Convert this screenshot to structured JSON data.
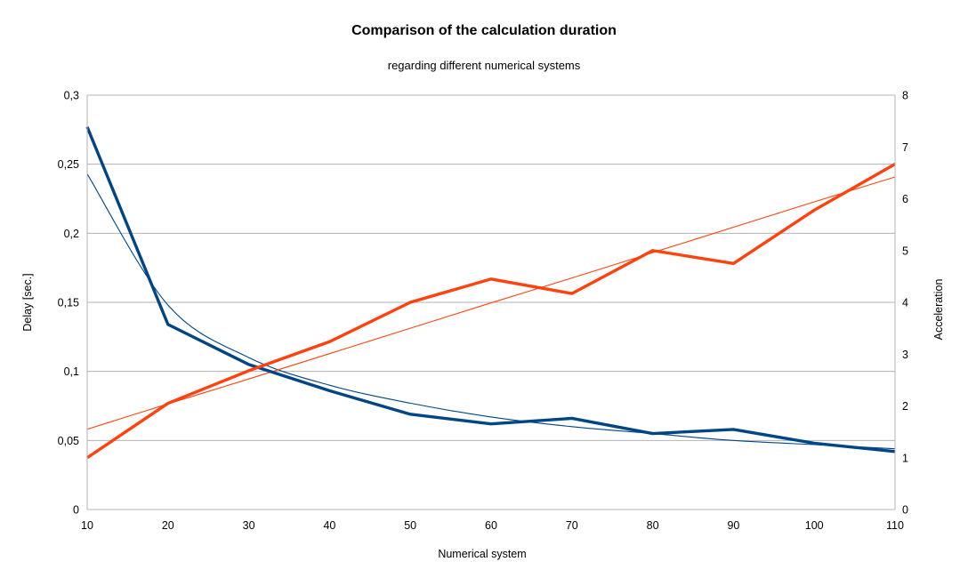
{
  "chart_data": {
    "type": "line",
    "title": "Comparison of the calculation duration",
    "subtitle": "regarding different numerical systems",
    "xlabel": "Numerical system",
    "ylabel": "Delay [sec.]",
    "y2label": "Acceleration",
    "x": [
      10,
      20,
      30,
      40,
      50,
      60,
      70,
      80,
      90,
      100,
      110
    ],
    "xlim": [
      10,
      110
    ],
    "x_ticks": [
      "10",
      "20",
      "30",
      "40",
      "50",
      "60",
      "70",
      "80",
      "90",
      "100",
      "110"
    ],
    "ylim": [
      0,
      0.3
    ],
    "y_ticks": [
      "0",
      "0,05",
      "0,1",
      "0,15",
      "0,2",
      "0,25",
      "0,3"
    ],
    "y2lim": [
      0,
      8
    ],
    "y2_ticks": [
      "0",
      "1",
      "2",
      "3",
      "4",
      "5",
      "6",
      "7",
      "8"
    ],
    "grid": true,
    "legend": "none",
    "series": [
      {
        "axis": "left",
        "color": "#004586",
        "values": [
          0.277,
          0.134,
          0.105,
          0.086,
          0.069,
          0.062,
          0.066,
          0.055,
          0.058,
          0.048,
          0.042
        ]
      },
      {
        "axis": "right",
        "color": "#ff420e",
        "values": [
          1.0,
          2.05,
          2.68,
          3.24,
          4.0,
          4.45,
          4.17,
          5.0,
          4.75,
          5.78,
          6.67
        ]
      }
    ],
    "trendlines": [
      {
        "axis": "left",
        "fit": "power",
        "color": "#004586",
        "values": [
          0.243,
          0.148,
          0.11,
          0.09,
          0.077,
          0.067,
          0.06,
          0.055,
          0.05,
          0.047,
          0.044
        ]
      },
      {
        "axis": "right",
        "fit": "linear",
        "color": "#ff420e",
        "values": [
          1.55,
          2.04,
          2.52,
          3.01,
          3.5,
          3.99,
          4.47,
          4.96,
          5.45,
          5.94,
          6.42
        ]
      }
    ]
  }
}
